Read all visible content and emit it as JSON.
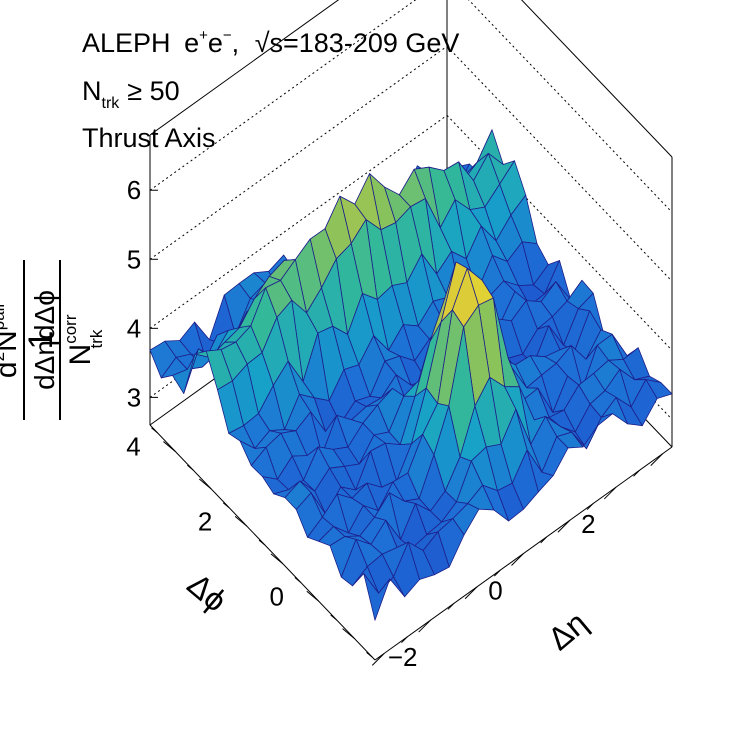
{
  "chart_data": {
    "type": "surface",
    "annotations": {
      "experiment": "ALEPH",
      "beam": "e",
      "beam_sup_plus": "+",
      "beam_sup_minus": "−",
      "sqrt_s": "√s=183-209 GeV",
      "ntrk_base": "N",
      "ntrk_sub": "trk",
      "ntrk_cut": "≥ 50",
      "axis": "Thrust Axis"
    },
    "xlabel": "Δη",
    "ylabel": "Δϕ",
    "zlabel": {
      "numerator": "1",
      "den_base": "N",
      "den_sup": "corr",
      "den_sub": "trk",
      "frac_num_prefix": "d",
      "frac_num_sup": "2",
      "frac_num_base": "N",
      "frac_num_sup2": "pair",
      "frac_den": "dΔηdΔϕ"
    },
    "x_ticks": [
      "−2",
      "0",
      "2"
    ],
    "y_ticks": [
      "0",
      "2",
      "4"
    ],
    "z_ticks": [
      "3",
      "4",
      "5",
      "6"
    ],
    "xlim": [
      -3.2,
      3.2
    ],
    "ylim": [
      -1.57,
      4.71
    ],
    "zlim": [
      2.6,
      6.8
    ],
    "grid": true,
    "colormap": [
      "#1f3fc8",
      "#1e6fd6",
      "#17a2c8",
      "#33b89a",
      "#8cc35a",
      "#d8c93b",
      "#fff21a"
    ],
    "surface_model": {
      "background": 3.45,
      "near_side_peak": {
        "x": 0.0,
        "y": 0.0,
        "height": 2.7,
        "sigma_x": 0.45,
        "sigma_y": 0.55
      },
      "away_side_ridge": {
        "y": 3.14,
        "height": 1.7,
        "sigma_x": 0.6,
        "sigma_y": 0.45
      },
      "grid_x_steps": 20,
      "grid_y_steps": 20
    }
  }
}
